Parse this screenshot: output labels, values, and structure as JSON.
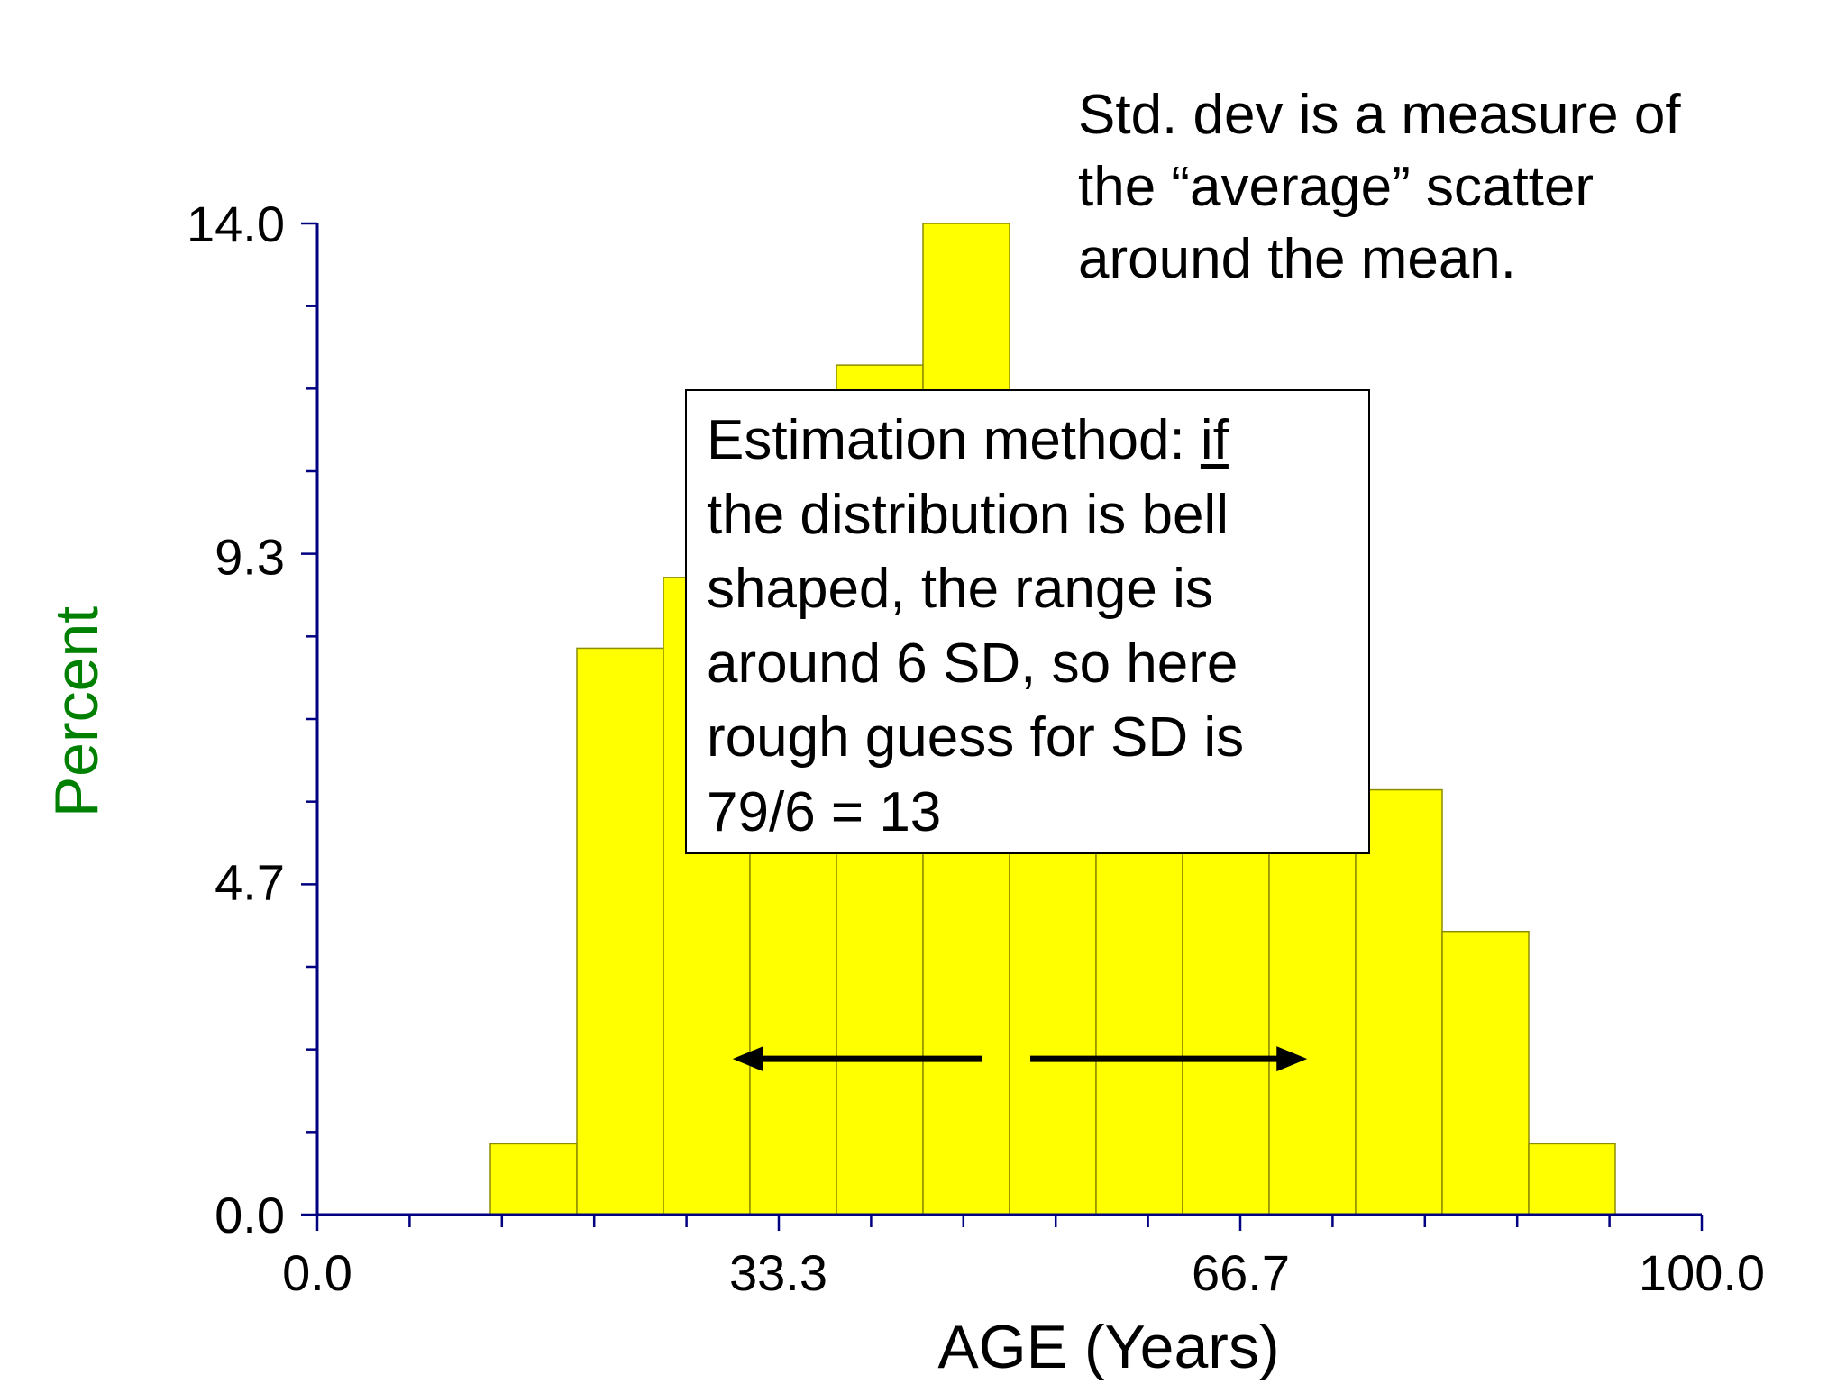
{
  "chart_data": {
    "type": "bar",
    "xlabel": "AGE (Years)",
    "ylabel": "Percent",
    "xlim": [
      0,
      100
    ],
    "ylim": [
      0,
      14
    ],
    "x_ticks": [
      0,
      33.3,
      66.7,
      100
    ],
    "x_tick_labels": [
      "0.0",
      "33.3",
      "66.7",
      "100.0"
    ],
    "x_minor_ticks": 15,
    "y_ticks": [
      0,
      4.7,
      9.3,
      14
    ],
    "y_tick_labels": [
      "0.0",
      "4.7",
      "9.3",
      "14.0"
    ],
    "y_minor_per_major": 4,
    "bins": [
      {
        "from": 12.5,
        "to": 18.75,
        "value": 1.0
      },
      {
        "from": 18.75,
        "to": 25.0,
        "value": 8.0
      },
      {
        "from": 25.0,
        "to": 31.25,
        "value": 9.0
      },
      {
        "from": 31.25,
        "to": 37.5,
        "value": 10.5
      },
      {
        "from": 37.5,
        "to": 43.75,
        "value": 12.0
      },
      {
        "from": 43.75,
        "to": 50.0,
        "value": 14.0
      },
      {
        "from": 50.0,
        "to": 56.25,
        "value": 10.0
      },
      {
        "from": 56.25,
        "to": 62.5,
        "value": 9.0
      },
      {
        "from": 62.5,
        "to": 68.75,
        "value": 8.0
      },
      {
        "from": 68.75,
        "to": 75.0,
        "value": 7.0
      },
      {
        "from": 75.0,
        "to": 81.25,
        "value": 6.0
      },
      {
        "from": 81.25,
        "to": 87.5,
        "value": 4.0
      },
      {
        "from": 87.5,
        "to": 93.75,
        "value": 1.0
      }
    ],
    "arrows": [
      {
        "from": 48.0,
        "to": 30.0,
        "y": 2.2
      },
      {
        "from": 51.5,
        "to": 71.5,
        "y": 2.2
      }
    ],
    "colors": {
      "bar_fill": "#ffff00",
      "bar_stroke": "#8c8c00",
      "axis": "#000080",
      "ylabel": "#008000",
      "arrow": "#000000"
    }
  },
  "note": {
    "lines": [
      "Std. dev is a measure of",
      "the “average” scatter",
      "around the mean."
    ]
  },
  "estimation_box": {
    "line1_prefix": "Estimation method: ",
    "line1_underlined": "if",
    "lines": [
      "the distribution is bell",
      "shaped, the range is",
      "around 6 SD, so here",
      "rough guess for SD is",
      "79/6 = 13"
    ]
  }
}
